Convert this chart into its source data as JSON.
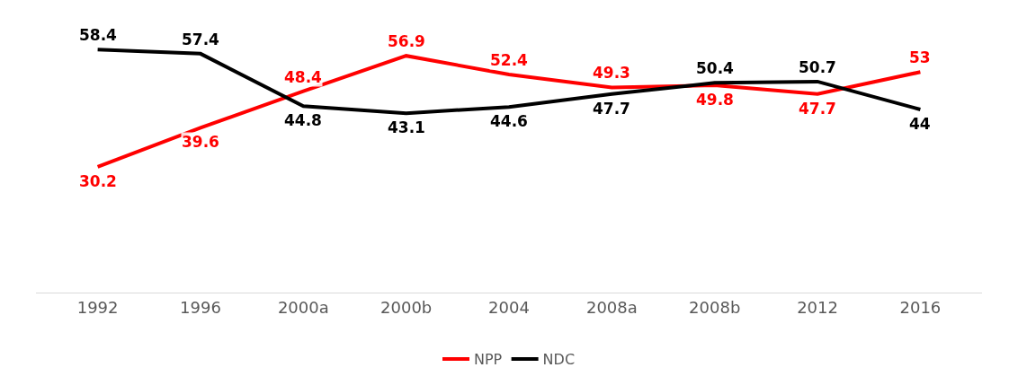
{
  "chart_data": {
    "type": "line",
    "categories": [
      "1992",
      "1996",
      "2000a",
      "2000b",
      "2004",
      "2008a",
      "2008b",
      "2012",
      "2016"
    ],
    "series": [
      {
        "name": "NPP",
        "color": "#ff0000",
        "values": [
          30.2,
          39.6,
          48.4,
          56.9,
          52.4,
          49.3,
          49.8,
          47.7,
          53
        ]
      },
      {
        "name": "NDC",
        "color": "#000000",
        "values": [
          58.4,
          57.4,
          44.8,
          43.1,
          44.6,
          47.7,
          50.4,
          50.7,
          44
        ]
      }
    ],
    "data_labels": true,
    "legend": "bottom",
    "marker": "none",
    "line_style": "solid",
    "tick_labels": "x"
  }
}
